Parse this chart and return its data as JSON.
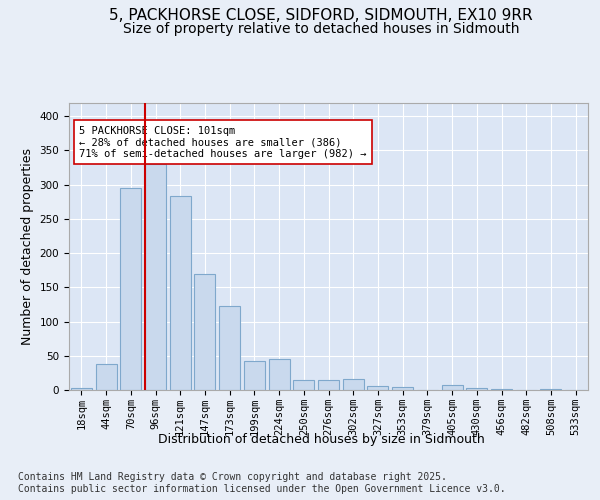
{
  "title": "5, PACKHORSE CLOSE, SIDFORD, SIDMOUTH, EX10 9RR",
  "subtitle": "Size of property relative to detached houses in Sidmouth",
  "xlabel": "Distribution of detached houses by size in Sidmouth",
  "ylabel": "Number of detached properties",
  "categories": [
    "18sqm",
    "44sqm",
    "70sqm",
    "96sqm",
    "121sqm",
    "147sqm",
    "173sqm",
    "199sqm",
    "224sqm",
    "250sqm",
    "276sqm",
    "302sqm",
    "327sqm",
    "353sqm",
    "379sqm",
    "405sqm",
    "430sqm",
    "456sqm",
    "482sqm",
    "508sqm",
    "533sqm"
  ],
  "values": [
    3,
    38,
    295,
    330,
    283,
    170,
    122,
    43,
    46,
    14,
    14,
    16,
    6,
    5,
    0,
    7,
    3,
    1,
    0,
    1,
    0
  ],
  "bar_color": "#c9d9ed",
  "bar_edge_color": "#7fa8cc",
  "background_color": "#e8eef7",
  "plot_bg_color": "#dce6f5",
  "grid_color": "#ffffff",
  "vline_color": "#cc0000",
  "annotation_text": "5 PACKHORSE CLOSE: 101sqm\n← 28% of detached houses are smaller (386)\n71% of semi-detached houses are larger (982) →",
  "annotation_box_color": "#ffffff",
  "annotation_box_edge": "#cc0000",
  "footer_text": "Contains HM Land Registry data © Crown copyright and database right 2025.\nContains public sector information licensed under the Open Government Licence v3.0.",
  "ylim": [
    0,
    420
  ],
  "yticks": [
    0,
    50,
    100,
    150,
    200,
    250,
    300,
    350,
    400
  ],
  "title_fontsize": 11,
  "subtitle_fontsize": 10,
  "axis_label_fontsize": 9,
  "tick_fontsize": 7.5,
  "footer_fontsize": 7
}
